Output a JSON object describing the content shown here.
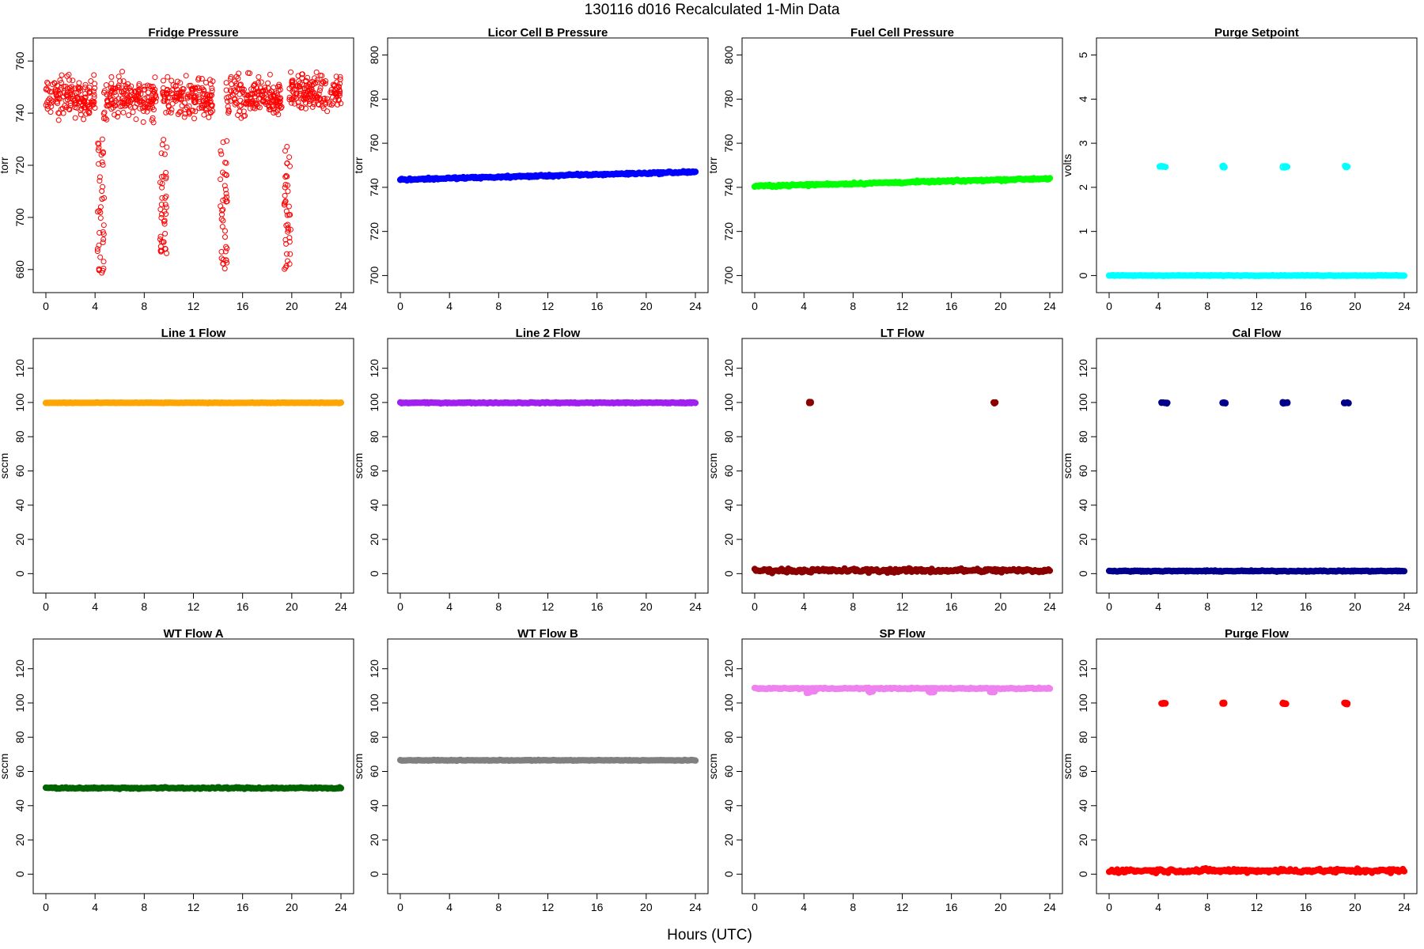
{
  "page": {
    "title": "130116   d016   Recalculated 1-Min Data",
    "xlabel": "Hours (UTC)"
  },
  "chart_data": [
    {
      "type": "scatter",
      "title": "Fridge Pressure",
      "ylabel": "torr",
      "color": "#ff0000",
      "marker": "open-circle",
      "xlim": [
        0,
        24
      ],
      "ylim": [
        676,
        764
      ],
      "xticks": [
        "0",
        "4",
        "8",
        "12",
        "16",
        "20",
        "24"
      ],
      "yticks": [
        "680",
        "700",
        "720",
        "740",
        "760"
      ],
      "series": [
        {
          "pattern": "noisy",
          "segments": [
            [
              0,
              4,
              746,
              6
            ],
            [
              4.7,
              9,
              746,
              6
            ],
            [
              9.5,
              13.6,
              746,
              6
            ],
            [
              14.6,
              19.2,
              746,
              6
            ],
            [
              19.8,
              24,
              748,
              5
            ]
          ]
        },
        {
          "pattern": "dips",
          "events": [
            [
              4.3,
              678
            ],
            [
              9.4,
              681
            ],
            [
              14.3,
              680
            ],
            [
              19.5,
              680
            ]
          ]
        }
      ]
    },
    {
      "type": "scatter",
      "title": "Licor Cell B Pressure",
      "ylabel": "torr",
      "color": "#0000ff",
      "marker": "filled-circle",
      "xlim": [
        0,
        24
      ],
      "ylim": [
        698,
        802
      ],
      "xticks": [
        "0",
        "4",
        "8",
        "12",
        "16",
        "20",
        "24"
      ],
      "yticks": [
        "700",
        "720",
        "740",
        "760",
        "780",
        "800"
      ],
      "series": [
        {
          "pattern": "line",
          "y_start": 743.5,
          "y_end": 747,
          "noise": 0.3
        }
      ]
    },
    {
      "type": "scatter",
      "title": "Fuel Cell Pressure",
      "ylabel": "torr",
      "color": "#00ff00",
      "marker": "filled-circle",
      "xlim": [
        0,
        24
      ],
      "ylim": [
        698,
        802
      ],
      "xticks": [
        "0",
        "4",
        "8",
        "12",
        "16",
        "20",
        "24"
      ],
      "yticks": [
        "700",
        "720",
        "740",
        "760",
        "780",
        "800"
      ],
      "series": [
        {
          "pattern": "line",
          "y_start": 740.5,
          "y_end": 744,
          "noise": 0.3
        }
      ]
    },
    {
      "type": "scatter",
      "title": "Purge Setpoint",
      "ylabel": "volts",
      "color": "#00ffff",
      "marker": "mixed-circle",
      "xlim": [
        0,
        24
      ],
      "ylim": [
        -0.1,
        5.1
      ],
      "xticks": [
        "0",
        "4",
        "8",
        "12",
        "16",
        "20",
        "24"
      ],
      "yticks": [
        "0",
        "1",
        "2",
        "3",
        "4",
        "5"
      ],
      "series": [
        {
          "pattern": "line",
          "y_start": 0,
          "y_end": 0,
          "noise": 0.005
        },
        {
          "pattern": "clusters",
          "y": 2.47,
          "events": [
            [
              4.1,
              4.6
            ],
            [
              9.2,
              9.4
            ],
            [
              14.1,
              14.5
            ],
            [
              19.1,
              19.4
            ]
          ]
        }
      ]
    },
    {
      "type": "scatter",
      "title": "Line 1 Flow",
      "ylabel": "sccm",
      "color": "#ffa500",
      "marker": "filled-circle",
      "xlim": [
        0,
        24
      ],
      "ylim": [
        -4,
        130
      ],
      "xticks": [
        "0",
        "4",
        "8",
        "12",
        "16",
        "20",
        "24"
      ],
      "yticks": [
        "0",
        "20",
        "40",
        "60",
        "80",
        "100",
        "120"
      ],
      "series": [
        {
          "pattern": "line",
          "y_start": 99.8,
          "y_end": 99.8,
          "noise": 0.1
        }
      ]
    },
    {
      "type": "scatter",
      "title": "Line 2 Flow",
      "ylabel": "sccm",
      "color": "#a020f0",
      "marker": "filled-circle",
      "xlim": [
        0,
        24
      ],
      "ylim": [
        -4,
        130
      ],
      "xticks": [
        "0",
        "4",
        "8",
        "12",
        "16",
        "20",
        "24"
      ],
      "yticks": [
        "0",
        "20",
        "40",
        "60",
        "80",
        "100",
        "120"
      ],
      "series": [
        {
          "pattern": "line",
          "y_start": 99.8,
          "y_end": 99.8,
          "noise": 0.2
        }
      ]
    },
    {
      "type": "scatter",
      "title": "LT Flow",
      "ylabel": "sccm",
      "color": "#8b0000",
      "marker": "mixed-circle",
      "xlim": [
        0,
        24
      ],
      "ylim": [
        -4,
        130
      ],
      "xticks": [
        "0",
        "4",
        "8",
        "12",
        "16",
        "20",
        "24"
      ],
      "yticks": [
        "0",
        "20",
        "40",
        "60",
        "80",
        "100",
        "120"
      ],
      "series": [
        {
          "pattern": "line",
          "y_start": 1.8,
          "y_end": 1.8,
          "noise": 0.8
        },
        {
          "pattern": "clusters",
          "y": 100,
          "events": [
            [
              4.4,
              4.6
            ],
            [
              19.4,
              19.6
            ]
          ]
        }
      ]
    },
    {
      "type": "scatter",
      "title": "Cal Flow",
      "ylabel": "sccm",
      "color": "#00008b",
      "marker": "mixed-circle",
      "xlim": [
        0,
        24
      ],
      "ylim": [
        -4,
        130
      ],
      "xticks": [
        "0",
        "4",
        "8",
        "12",
        "16",
        "20",
        "24"
      ],
      "yticks": [
        "0",
        "20",
        "40",
        "60",
        "80",
        "100",
        "120"
      ],
      "series": [
        {
          "pattern": "line",
          "y_start": 1.5,
          "y_end": 1.5,
          "noise": 0.2
        },
        {
          "pattern": "clusters",
          "y": 99.8,
          "events": [
            [
              4.2,
              4.8
            ],
            [
              9.2,
              9.5
            ],
            [
              14.1,
              14.6
            ],
            [
              19.1,
              19.5
            ]
          ]
        }
      ]
    },
    {
      "type": "scatter",
      "title": "WT Flow A",
      "ylabel": "sccm",
      "color": "#006400",
      "marker": "filled-circle",
      "xlim": [
        0,
        24
      ],
      "ylim": [
        -4,
        130
      ],
      "xticks": [
        "0",
        "4",
        "8",
        "12",
        "16",
        "20",
        "24"
      ],
      "yticks": [
        "0",
        "20",
        "40",
        "60",
        "80",
        "100",
        "120"
      ],
      "series": [
        {
          "pattern": "line",
          "y_start": 50.3,
          "y_end": 50.3,
          "noise": 0.3
        }
      ]
    },
    {
      "type": "scatter",
      "title": "WT Flow B",
      "ylabel": "sccm",
      "color": "#808080",
      "marker": "filled-circle",
      "xlim": [
        0,
        24
      ],
      "ylim": [
        -4,
        130
      ],
      "xticks": [
        "0",
        "4",
        "8",
        "12",
        "16",
        "20",
        "24"
      ],
      "yticks": [
        "0",
        "20",
        "40",
        "60",
        "80",
        "100",
        "120"
      ],
      "series": [
        {
          "pattern": "line",
          "y_start": 66.5,
          "y_end": 66.5,
          "noise": 0.15
        }
      ]
    },
    {
      "type": "scatter",
      "title": "SP Flow",
      "ylabel": "sccm",
      "color": "#ee82ee",
      "marker": "filled-circle",
      "xlim": [
        0,
        24
      ],
      "ylim": [
        -4,
        130
      ],
      "xticks": [
        "0",
        "4",
        "8",
        "12",
        "16",
        "20",
        "24"
      ],
      "yticks": [
        "0",
        "20",
        "40",
        "60",
        "80",
        "100",
        "120"
      ],
      "series": [
        {
          "pattern": "line",
          "y_start": 108.5,
          "y_end": 108.5,
          "noise": 0.25
        },
        {
          "pattern": "notches",
          "y": 106.5,
          "events": [
            [
              4.1,
              4.9
            ],
            [
              9.2,
              9.6
            ],
            [
              14.1,
              14.6
            ],
            [
              19.1,
              19.5
            ]
          ]
        }
      ]
    },
    {
      "type": "scatter",
      "title": "Purge Flow",
      "ylabel": "sccm",
      "color": "#ff0000",
      "marker": "mixed-circle",
      "xlim": [
        0,
        24
      ],
      "ylim": [
        -4,
        130
      ],
      "xticks": [
        "0",
        "4",
        "8",
        "12",
        "16",
        "20",
        "24"
      ],
      "yticks": [
        "0",
        "20",
        "40",
        "60",
        "80",
        "100",
        "120"
      ],
      "series": [
        {
          "pattern": "line",
          "y_start": 2,
          "y_end": 2,
          "noise": 0.8
        },
        {
          "pattern": "clusters",
          "y": 99.8,
          "events": [
            [
              4.2,
              4.6
            ],
            [
              9.2,
              9.4
            ],
            [
              14.1,
              14.4
            ],
            [
              19.1,
              19.4
            ]
          ]
        }
      ]
    }
  ]
}
